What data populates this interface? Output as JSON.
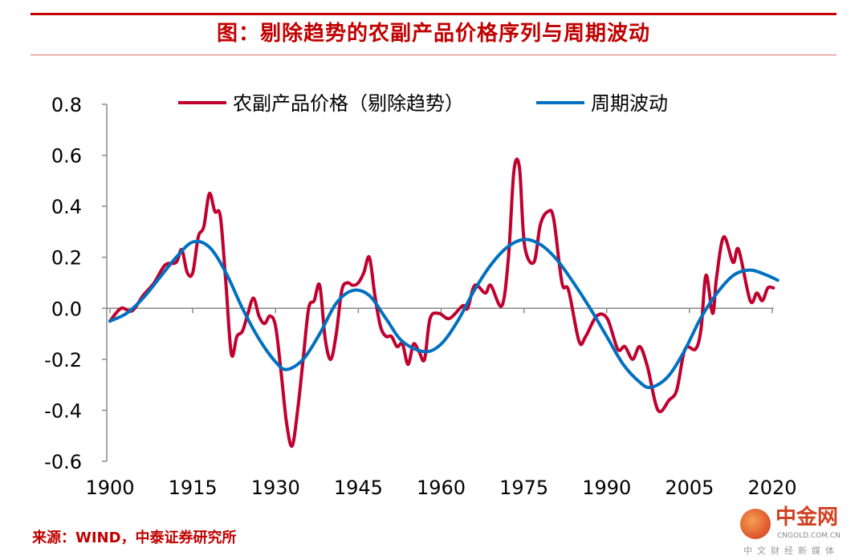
{
  "title": "图：剔除趋势的农副产品价格序列与周期波动",
  "source": "来源：WIND，中泰证券研究所",
  "logo": {
    "name": "中金网",
    "url": "CNGOLD.COM.CN",
    "sub": "中文财经新媒体"
  },
  "colors": {
    "red": "#c0002e",
    "blue": "#0070c0",
    "title": "#c00000"
  },
  "chart_data": {
    "type": "line",
    "title": "图：剔除趋势的农副产品价格序列与周期波动",
    "xlabel": "",
    "ylabel": "",
    "xlim": [
      1900,
      2020
    ],
    "ylim": [
      -0.6,
      0.8
    ],
    "xticks": [
      "1900",
      "1915",
      "1930",
      "1945",
      "1960",
      "1975",
      "1990",
      "2005",
      "2020"
    ],
    "yticks": [
      "0.8",
      "0.6",
      "0.4",
      "0.2",
      "0.0",
      "-0.2",
      "-0.4",
      "-0.6"
    ],
    "legend_position": "top",
    "series": [
      {
        "name": "农副产品价格（剔除趋势）",
        "color": "#c0002e",
        "x": [
          1900,
          1902,
          1904,
          1906,
          1908,
          1910,
          1912,
          1913,
          1914,
          1915,
          1916,
          1917,
          1918,
          1919,
          1920,
          1921,
          1922,
          1923,
          1924,
          1925,
          1926,
          1927,
          1928,
          1929,
          1930,
          1931,
          1932,
          1933,
          1934,
          1935,
          1936,
          1937,
          1938,
          1939,
          1940,
          1941,
          1942,
          1943,
          1944,
          1945,
          1946,
          1947,
          1948,
          1949,
          1950,
          1951,
          1952,
          1953,
          1954,
          1955,
          1956,
          1957,
          1958,
          1959.6,
          1961.5,
          1963.9,
          1964.8,
          1966.1,
          1968,
          1969,
          1971,
          1972.2,
          1973.2,
          1974.2,
          1975.1,
          1976.8,
          1978,
          1979.4,
          1980.4,
          1981.9,
          1983.1,
          1985,
          1986.2,
          1988.2,
          1990.1,
          1992,
          1993.3,
          1994.7,
          1996,
          1997.4,
          1999.3,
          2001.3,
          2002.7,
          2004.2,
          2006.1,
          2007.1,
          2008,
          2009.2,
          2009.9,
          2011.2,
          2012.9,
          2013.9,
          2016,
          2017.2,
          2018.2,
          2019.2,
          2020.2
        ],
        "y": [
          -0.05,
          0.0,
          -0.01,
          0.05,
          0.1,
          0.17,
          0.18,
          0.23,
          0.14,
          0.14,
          0.28,
          0.32,
          0.45,
          0.38,
          0.36,
          0.1,
          -0.18,
          -0.11,
          -0.09,
          -0.02,
          0.04,
          -0.03,
          -0.06,
          -0.03,
          -0.07,
          -0.25,
          -0.45,
          -0.54,
          -0.4,
          -0.2,
          0.0,
          0.03,
          0.09,
          -0.12,
          -0.2,
          -0.1,
          0.07,
          0.1,
          0.09,
          0.1,
          0.14,
          0.2,
          0.05,
          -0.07,
          -0.11,
          -0.11,
          -0.15,
          -0.14,
          -0.22,
          -0.14,
          -0.17,
          -0.2,
          -0.04,
          -0.02,
          -0.04,
          0.01,
          0.0,
          0.09,
          0.06,
          0.09,
          0.01,
          0.2,
          0.54,
          0.55,
          0.25,
          0.18,
          0.33,
          0.38,
          0.35,
          0.1,
          0.07,
          -0.13,
          -0.11,
          -0.03,
          -0.04,
          -0.16,
          -0.15,
          -0.2,
          -0.15,
          -0.23,
          -0.4,
          -0.36,
          -0.32,
          -0.16,
          -0.16,
          -0.08,
          0.13,
          -0.02,
          0.12,
          0.28,
          0.18,
          0.23,
          0.03,
          0.06,
          0.03,
          0.08,
          0.08
        ]
      },
      {
        "name": "周期波动",
        "color": "#0070c0",
        "x": [
          1900,
          1903,
          1906,
          1909,
          1912,
          1915,
          1918,
          1921,
          1924,
          1927,
          1930,
          1932,
          1935,
          1938,
          1941,
          1944,
          1947,
          1950,
          1953,
          1957,
          1960,
          1963,
          1966,
          1969,
          1972,
          1975,
          1978,
          1981,
          1984,
          1987,
          1990,
          1993,
          1996,
          1998,
          2001,
          2004,
          2007,
          2010,
          2013,
          2016,
          2019,
          2021
        ],
        "y": [
          -0.05,
          -0.02,
          0.04,
          0.12,
          0.2,
          0.26,
          0.24,
          0.14,
          0.0,
          -0.12,
          -0.21,
          -0.24,
          -0.2,
          -0.1,
          0.02,
          0.07,
          0.05,
          -0.04,
          -0.13,
          -0.17,
          -0.14,
          -0.05,
          0.07,
          0.17,
          0.24,
          0.27,
          0.25,
          0.19,
          0.1,
          0.0,
          -0.11,
          -0.22,
          -0.29,
          -0.31,
          -0.27,
          -0.17,
          -0.04,
          0.06,
          0.13,
          0.15,
          0.13,
          0.11
        ]
      }
    ]
  }
}
